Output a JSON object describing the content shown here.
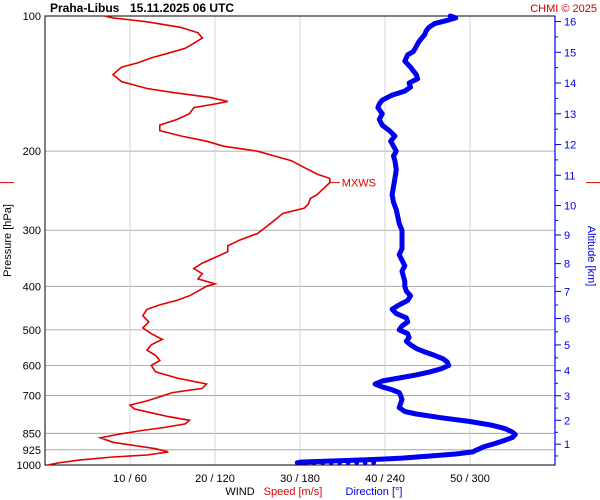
{
  "header": {
    "station": "Praha-Libus",
    "datetime": "15.11.2025 06 UTC",
    "credit": "CHMI © 2025"
  },
  "colors": {
    "speed": "#e00000",
    "direction": "#0000ee",
    "grid": "#999999",
    "altitude_axis": "#0000ee"
  },
  "chart_data": {
    "type": "line",
    "title": "",
    "y_axis": {
      "label": "Pressure [hPa]",
      "scale": "log",
      "ticks": [
        100,
        200,
        300,
        400,
        500,
        600,
        700,
        850,
        925,
        1000
      ],
      "range": [
        100,
        1000
      ],
      "inverted": true
    },
    "x_axis": {
      "group_label": "WIND",
      "speed_label": "Speed [m/s]",
      "direction_label": "Direction [°]",
      "tick_labels": [
        "10 / 60",
        "20 / 120",
        "30 / 180",
        "40 / 240",
        "50 / 300"
      ],
      "speed_range": [
        0,
        60
      ],
      "direction_range": [
        0,
        360
      ]
    },
    "altitude_axis": {
      "label": "Altitude [km]",
      "ticks": [
        1,
        2,
        3,
        4,
        5,
        6,
        7,
        8,
        9,
        10,
        11,
        12,
        13,
        14,
        15,
        16
      ]
    },
    "annotations": [
      {
        "text": "MXWS",
        "pressure": 235,
        "speed": 33.5
      }
    ],
    "grid": true,
    "series": [
      {
        "name": "Speed [m/s]",
        "unit": "m/s",
        "points": [
          [
            1000,
            0.3
          ],
          [
            990,
            1.5
          ],
          [
            975,
            4.0
          ],
          [
            960,
            8.0
          ],
          [
            950,
            12.0
          ],
          [
            935,
            14.5
          ],
          [
            920,
            13.0
          ],
          [
            905,
            10.5
          ],
          [
            890,
            8.0
          ],
          [
            870,
            6.5
          ],
          [
            855,
            8.5
          ],
          [
            840,
            11.0
          ],
          [
            825,
            14.0
          ],
          [
            810,
            16.5
          ],
          [
            795,
            17.0
          ],
          [
            780,
            14.5
          ],
          [
            765,
            12.5
          ],
          [
            750,
            10.5
          ],
          [
            735,
            10.0
          ],
          [
            720,
            12.0
          ],
          [
            705,
            13.5
          ],
          [
            690,
            15.0
          ],
          [
            675,
            18.5
          ],
          [
            660,
            19.0
          ],
          [
            640,
            15.5
          ],
          [
            620,
            13.0
          ],
          [
            600,
            12.5
          ],
          [
            585,
            13.5
          ],
          [
            570,
            13.0
          ],
          [
            555,
            12.0
          ],
          [
            540,
            12.5
          ],
          [
            525,
            13.8
          ],
          [
            510,
            12.5
          ],
          [
            495,
            11.5
          ],
          [
            480,
            12.2
          ],
          [
            465,
            11.5
          ],
          [
            450,
            12.0
          ],
          [
            440,
            13.5
          ],
          [
            430,
            15.5
          ],
          [
            420,
            17.0
          ],
          [
            410,
            18.0
          ],
          [
            400,
            19.0
          ],
          [
            395,
            20.0
          ],
          [
            385,
            18.0
          ],
          [
            375,
            18.5
          ],
          [
            365,
            17.5
          ],
          [
            355,
            18.5
          ],
          [
            345,
            20.0
          ],
          [
            335,
            21.5
          ],
          [
            325,
            21.5
          ],
          [
            315,
            23.0
          ],
          [
            305,
            25.0
          ],
          [
            295,
            26.0
          ],
          [
            285,
            27.0
          ],
          [
            275,
            28.0
          ],
          [
            268,
            30.5
          ],
          [
            262,
            31.0
          ],
          [
            255,
            31.2
          ],
          [
            250,
            32.0
          ],
          [
            245,
            32.5
          ],
          [
            240,
            33.0
          ],
          [
            235,
            33.5
          ],
          [
            230,
            33.5
          ],
          [
            225,
            32.0
          ],
          [
            220,
            31.0
          ],
          [
            215,
            30.0
          ],
          [
            210,
            29.0
          ],
          [
            205,
            27.0
          ],
          [
            200,
            25.0
          ],
          [
            195,
            21.0
          ],
          [
            190,
            19.0
          ],
          [
            185,
            16.0
          ],
          [
            180,
            13.5
          ],
          [
            175,
            13.5
          ],
          [
            170,
            15.5
          ],
          [
            165,
            17.0
          ],
          [
            160,
            17.5
          ],
          [
            157,
            20.0
          ],
          [
            155,
            21.5
          ],
          [
            152,
            19.5
          ],
          [
            148,
            15.0
          ],
          [
            145,
            12.0
          ],
          [
            140,
            9.0
          ],
          [
            135,
            8.0
          ],
          [
            130,
            9.0
          ],
          [
            127,
            11.0
          ],
          [
            124,
            12.5
          ],
          [
            121,
            14.5
          ],
          [
            118,
            16.5
          ],
          [
            115,
            17.5
          ],
          [
            112,
            18.5
          ],
          [
            109,
            18.0
          ],
          [
            106,
            16.0
          ],
          [
            103,
            12.0
          ],
          [
            101,
            8.0
          ],
          [
            100,
            7.0
          ]
        ]
      },
      {
        "name": "Direction [°]",
        "unit": "deg",
        "points": [
          [
            985,
            180
          ],
          [
            980,
            200
          ],
          [
            975,
            220
          ],
          [
            970,
            238
          ],
          [
            965,
            252
          ],
          [
            955,
            272
          ],
          [
            945,
            290
          ],
          [
            935,
            302
          ],
          [
            925,
            305
          ],
          [
            910,
            310
          ],
          [
            895,
            318
          ],
          [
            880,
            325
          ],
          [
            868,
            330
          ],
          [
            855,
            332
          ],
          [
            845,
            330
          ],
          [
            830,
            325
          ],
          [
            815,
            315
          ],
          [
            800,
            300
          ],
          [
            785,
            280
          ],
          [
            770,
            262
          ],
          [
            760,
            254
          ],
          [
            745,
            250
          ],
          [
            730,
            251
          ],
          [
            715,
            252
          ],
          [
            700,
            251
          ],
          [
            690,
            250
          ],
          [
            680,
            245
          ],
          [
            670,
            238
          ],
          [
            660,
            233
          ],
          [
            650,
            238
          ],
          [
            640,
            250
          ],
          [
            630,
            262
          ],
          [
            620,
            272
          ],
          [
            610,
            280
          ],
          [
            600,
            285
          ],
          [
            590,
            284
          ],
          [
            580,
            281
          ],
          [
            570,
            275
          ],
          [
            560,
            268
          ],
          [
            550,
            262
          ],
          [
            540,
            258
          ],
          [
            530,
            255
          ],
          [
            520,
            257
          ],
          [
            510,
            256
          ],
          [
            500,
            250
          ],
          [
            490,
            252
          ],
          [
            480,
            256
          ],
          [
            470,
            255
          ],
          [
            460,
            248
          ],
          [
            450,
            245
          ],
          [
            440,
            250
          ],
          [
            430,
            256
          ],
          [
            420,
            258
          ],
          [
            410,
            255
          ],
          [
            400,
            254
          ],
          [
            390,
            254
          ],
          [
            380,
            253
          ],
          [
            370,
            252
          ],
          [
            360,
            254
          ],
          [
            350,
            252
          ],
          [
            340,
            250
          ],
          [
            330,
            252
          ],
          [
            320,
            252
          ],
          [
            310,
            252
          ],
          [
            300,
            252
          ],
          [
            290,
            250
          ],
          [
            280,
            249
          ],
          [
            270,
            248
          ],
          [
            260,
            246
          ],
          [
            250,
            245
          ],
          [
            240,
            246
          ],
          [
            230,
            247
          ],
          [
            220,
            248
          ],
          [
            210,
            247
          ],
          [
            205,
            246
          ],
          [
            200,
            248
          ],
          [
            195,
            246
          ],
          [
            190,
            244
          ],
          [
            185,
            247
          ],
          [
            180,
            243
          ],
          [
            175,
            238
          ],
          [
            170,
            236
          ],
          [
            165,
            238
          ],
          [
            160,
            235
          ],
          [
            157,
            236
          ],
          [
            154,
            238
          ],
          [
            150,
            245
          ],
          [
            147,
            254
          ],
          [
            144,
            258
          ],
          [
            141,
            257
          ],
          [
            138,
            263
          ],
          [
            135,
            262
          ],
          [
            130,
            258
          ],
          [
            126,
            254
          ],
          [
            122,
            256
          ],
          [
            120,
            260
          ],
          [
            117,
            262
          ],
          [
            114,
            264
          ],
          [
            112,
            266
          ],
          [
            110,
            268
          ],
          [
            108,
            269
          ],
          [
            106,
            271
          ],
          [
            104,
            275
          ],
          [
            102,
            285
          ],
          [
            101,
            290
          ],
          [
            100,
            286
          ]
        ]
      }
    ]
  }
}
